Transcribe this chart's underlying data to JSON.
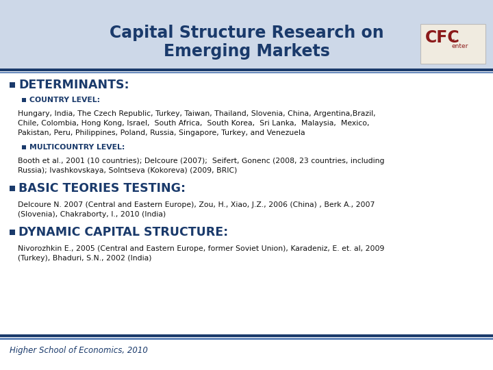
{
  "title_line1": "Capital Structure Research on",
  "title_line2": "Emerging Markets",
  "title_color": "#1a3a6b",
  "header_bg": "#cdd8e8",
  "bullet_color": "#1a3a6b",
  "section1_title": "DETERMINANTS:",
  "sub1_title": "COUNTRY LEVEL:",
  "sub1_text": "Hungary, India, The Czech Republic, Turkey, Taiwan, Thailand, Slovenia, China, Argentina,Brazil,\nChile, Colombia, Hong Kong, Israel,  South Africa,  South Korea,  Sri Lanka,  Malaysia,  Mexico,\nPakistan, Peru, Philippines, Poland, Russia, Singapore, Turkey, and Venezuela",
  "sub2_title": "MULTICOUNTRY LEVEL:",
  "sub2_text": "Booth et al., 2001 (10 countries); Delcoure (2007);  Seifert, Gonenc (2008, 23 countries, including\nRussia); Ivashkovskaya, Solntseva (Kokoreva) (2009, BRIC)",
  "section2_title": "BASIC TEORIES TESTING:",
  "section2_text": "Delcoure N. 2007 (Central and Eastern Europe), Zou, H., Xiao, J.Z., 2006 (China) , Berk A., 2007\n(Slovenia), Chakraborty, I., 2010 (India)",
  "section3_title": "DYNAMIC CAPITAL STRUCTURE:",
  "section3_text": "Nivorozhkin E., 2005 (Central and Eastern Europe, former Soviet Union), Karadeniz, E. et. al, 2009\n(Turkey), Bhaduri, S.N., 2002 (India)",
  "footer_text": "Higher School of Economics, 2010",
  "footer_color": "#1a3a6b",
  "stripe_dark": "#1a3a6b",
  "stripe_light": "#6688bb",
  "body_bg": "#f4f7fb",
  "text_color": "#111111",
  "cfc_bg": "#f0ebe0",
  "cfc_border": "#bbbbbb"
}
